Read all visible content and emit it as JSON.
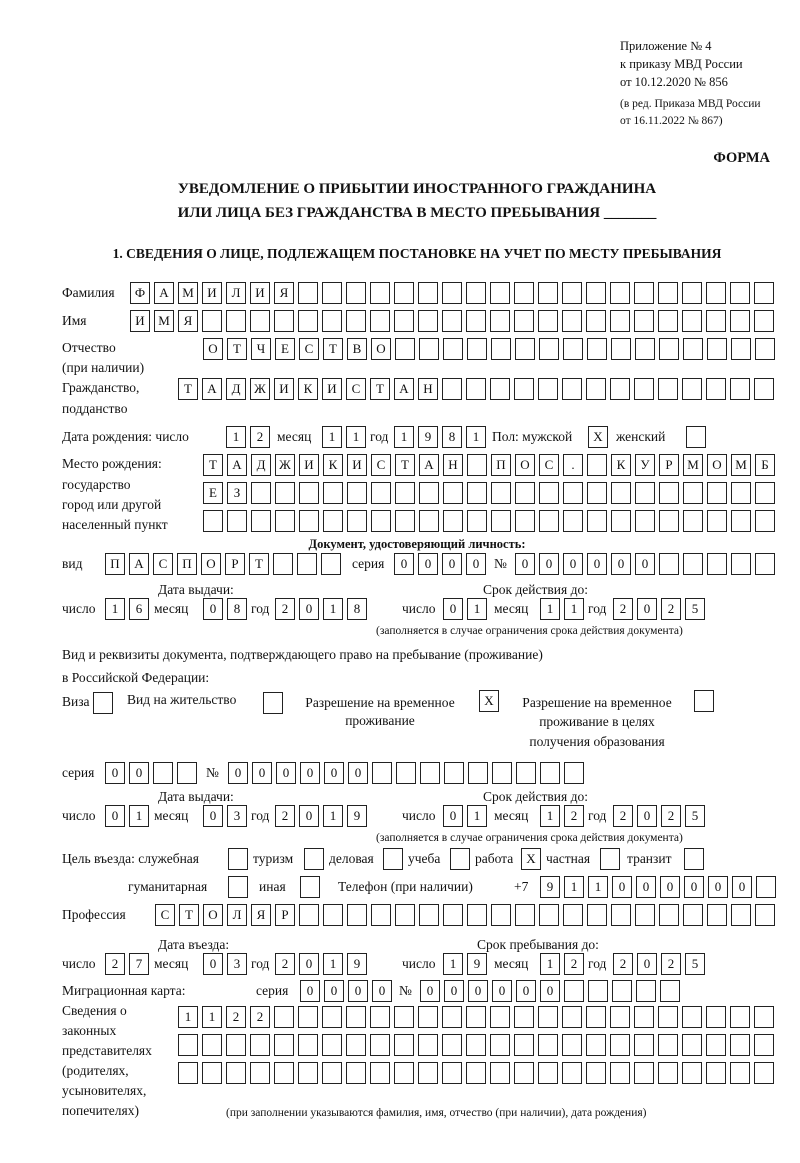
{
  "header": {
    "appendix_lines": [
      "Приложение № 4",
      "к приказу МВД России",
      "от 10.12.2020 № 856"
    ],
    "edition_lines": [
      "(в ред. Приказа МВД России",
      "от 16.11.2022 № 867)"
    ],
    "form_label": "ФОРМА",
    "title_line1": "УВЕДОМЛЕНИЕ О ПРИБЫТИИ ИНОСТРАННОГО ГРАЖДАНИНА",
    "title_line2": "ИЛИ ЛИЦА БЕЗ ГРАЖДАНСТВА В МЕСТО ПРЕБЫВАНИЯ _______",
    "section1": "1. СВЕДЕНИЯ О ЛИЦЕ, ПОДЛЕЖАЩЕМ ПОСТАНОВКЕ НА УЧЕТ ПО МЕСТУ ПРЕБЫВАНИЯ"
  },
  "person": {
    "surname_label": "Фамилия",
    "surname": "ФАМИЛИЯ",
    "name_label": "Имя",
    "name": "ИМЯ",
    "patronymic_label": "Отчество",
    "patronymic_label2": "(при наличии)",
    "patronymic": "ОТЧЕСТВО",
    "citizenship_label": "Гражданство,",
    "citizenship_label2": "подданство",
    "citizenship": "ТАДЖИКИСТАН",
    "birth_label": "Дата рождения:  число",
    "month_label": "месяц",
    "year_label": "год",
    "birth_day": "12",
    "birth_month": "11",
    "birth_year": "1981",
    "sex_label": "Пол: мужской",
    "male": "X",
    "female_label": "женский",
    "female": "",
    "birthplace_labels": [
      "Место рождения:",
      "государство",
      "город или другой",
      "населенный пункт"
    ],
    "birthplace_rows": [
      "ТАДЖИКИСТАН ПОС. КУРМОМБ",
      "ЕЗ",
      ""
    ]
  },
  "id_doc": {
    "heading": "Документ, удостоверяющий личность:",
    "kind_label": "вид",
    "kind": "ПАСПОРТ",
    "series_label": "серия",
    "series": "0000",
    "number_label": "№",
    "number": "000000",
    "issue_label": "Дата выдачи:",
    "valid_label": "Срок действия до:",
    "day_label": "число",
    "month_label": "месяц",
    "year_label": "год",
    "issue_day": "16",
    "issue_month": "08",
    "issue_year": "2018",
    "valid_day": "01",
    "valid_month": "11",
    "valid_year": "2025",
    "note": "(заполняется в случае ограничения срока действия документа)"
  },
  "stay_doc": {
    "heading1": "Вид и реквизиты документа, подтверждающего право на пребывание (проживание)",
    "heading2": "в Российской Федерации:",
    "visa_label": "Виза",
    "visa": "",
    "residence_label": "Вид на жительство",
    "residence": "",
    "temp_label1": "Разрешение на временное",
    "temp_label2": "проживание",
    "temp": "X",
    "edu_label1": "Разрешение на временное",
    "edu_label2": "проживание в целях",
    "edu_label3": "получения образования",
    "edu": "",
    "series_label": "серия",
    "series": "00",
    "number_label": "№",
    "number": "000000",
    "issue_label": "Дата выдачи:",
    "valid_label": "Срок действия до:",
    "day_label": "число",
    "month_label": "месяц",
    "year_label": "год",
    "issue_day": "01",
    "issue_month": "03",
    "issue_year": "2019",
    "valid_day": "01",
    "valid_month": "12",
    "valid_year": "2025",
    "note": "(заполняется в случае ограничения срока действия документа)"
  },
  "purpose": {
    "label": "Цель въезда: служебная",
    "official": "",
    "tourism_label": "туризм",
    "tourism": "",
    "business_label": "деловая",
    "business": "",
    "study_label": "учеба",
    "study": "",
    "work_label": "работа",
    "work": "X",
    "private_label": "частная",
    "private": "",
    "transit_label": "транзит",
    "transit": "",
    "humanitarian_label": "гуманитарная",
    "humanitarian": "",
    "other_label": "иная",
    "other": "",
    "phone_label": "Телефон (при наличии)",
    "phone_prefix": "+7",
    "phone": "911000000"
  },
  "profession": {
    "label": "Профессия",
    "value": "СТОЛЯР"
  },
  "entry": {
    "entry_label": "Дата въезда:",
    "until_label": "Срок пребывания до:",
    "day_label": "число",
    "month_label": "месяц",
    "year_label": "год",
    "entry_day": "27",
    "entry_month": "03",
    "entry_year": "2019",
    "until_day": "19",
    "until_month": "12",
    "until_year": "2025"
  },
  "migration_card": {
    "label": "Миграционная карта:",
    "series_label": "серия",
    "series": "0000",
    "number_label": "№",
    "number": "000000"
  },
  "representatives": {
    "labels": [
      "Сведения о",
      "законных",
      "представителях",
      "(родителях,",
      "усыновителях,",
      "попечителях)"
    ],
    "rows": [
      "1122",
      "",
      ""
    ],
    "note": "(при заполнении указываются фамилия, имя, отчество (при наличии), дата рождения)"
  }
}
